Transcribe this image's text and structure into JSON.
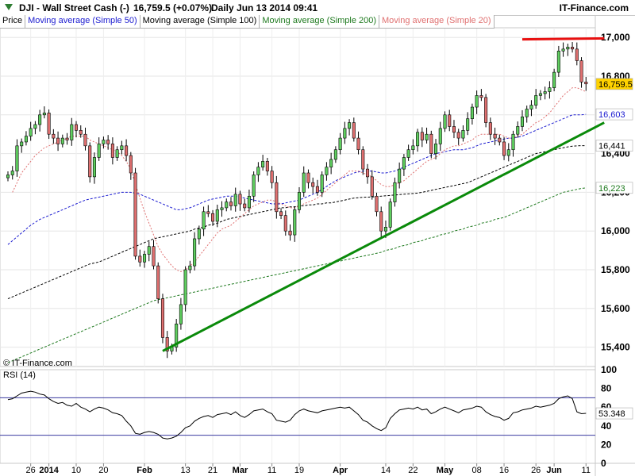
{
  "header": {
    "symbol": "DJI - Wall Street Cash (-)",
    "price_change": "16,759.5 (+0.07%)",
    "period": "Daily  Jun 13 2014 09:41",
    "brand": "IT-Finance.com"
  },
  "legend": [
    {
      "label": "Price",
      "color": "#000000"
    },
    {
      "label": "Moving average (Simple 50)",
      "color": "#1a1ad0"
    },
    {
      "label": "Moving average (Simple 100)",
      "color": "#000000"
    },
    {
      "label": "Moving average (Simple 200)",
      "color": "#1f7a1f"
    },
    {
      "label": "Moving average (Simple 20)",
      "color": "#e07070"
    }
  ],
  "copyright": "© IT-Finance.com",
  "rsi_label": "RSI (14)",
  "colors": {
    "up_candle": "#5fcf5f",
    "down_candle": "#e07070",
    "trendline_support": "#0a8a0a",
    "trendline_resistance": "#e81010",
    "sma20": "#e07070",
    "sma50": "#1a1ad0",
    "sma100": "#000000",
    "sma200": "#1f7a1f",
    "rsi_line": "#000000",
    "rsi_bands": "#3a3aa0"
  },
  "chart_data": [
    {
      "type": "candlestick",
      "title": "DJI - Wall Street Cash (-)",
      "ylim": [
        15300,
        17050
      ],
      "y_ticks": [
        15400,
        15600,
        15800,
        16000,
        16200,
        16400,
        16600,
        16800,
        17000
      ],
      "y_tick_labels": [
        "15,400",
        "15,600",
        "15,800",
        "16,000",
        "16,200",
        "16,400",
        "16,600",
        "16,800",
        "17,000"
      ],
      "x_ticks": [
        {
          "i": 5,
          "label": "26"
        },
        {
          "i": 9,
          "label": "2014"
        },
        {
          "i": 15,
          "label": "10"
        },
        {
          "i": 21,
          "label": "20"
        },
        {
          "i": 30,
          "label": "Feb"
        },
        {
          "i": 39,
          "label": "13"
        },
        {
          "i": 45,
          "label": "21"
        },
        {
          "i": 51,
          "label": "Mar"
        },
        {
          "i": 58,
          "label": "11"
        },
        {
          "i": 64,
          "label": "19"
        },
        {
          "i": 73,
          "label": "Apr"
        },
        {
          "i": 83,
          "label": "14"
        },
        {
          "i": 89,
          "label": "22"
        },
        {
          "i": 96,
          "label": "May"
        },
        {
          "i": 103,
          "label": "08"
        },
        {
          "i": 109,
          "label": "16"
        },
        {
          "i": 116,
          "label": "26"
        },
        {
          "i": 120,
          "label": "Jun"
        },
        {
          "i": 127,
          "label": "11"
        }
      ],
      "close": [
        16290,
        16310,
        16440,
        16460,
        16490,
        16530,
        16550,
        16600,
        16610,
        16500,
        16480,
        16450,
        16480,
        16470,
        16550,
        16520,
        16500,
        16440,
        16280,
        16380,
        16450,
        16470,
        16450,
        16380,
        16420,
        16440,
        16390,
        16300,
        15870,
        15840,
        15880,
        15920,
        15820,
        15650,
        15450,
        15380,
        15400,
        15520,
        15620,
        15800,
        15820,
        15960,
        16010,
        16100,
        16090,
        16050,
        16110,
        16120,
        16150,
        16130,
        16190,
        16140,
        16120,
        16180,
        16290,
        16330,
        16360,
        16310,
        16250,
        16100,
        16080,
        16000,
        15980,
        16110,
        16200,
        16300,
        16250,
        16230,
        16200,
        16290,
        16330,
        16370,
        16420,
        16480,
        16530,
        16560,
        16480,
        16420,
        16320,
        16280,
        16180,
        16100,
        16000,
        16020,
        16150,
        16250,
        16320,
        16380,
        16420,
        16440,
        16510,
        16470,
        16500,
        16400,
        16450,
        16530,
        16600,
        16540,
        16510,
        16480,
        16520,
        16580,
        16640,
        16700,
        16690,
        16560,
        16500,
        16480,
        16460,
        16390,
        16420,
        16500,
        16540,
        16590,
        16630,
        16650,
        16700,
        16710,
        16720,
        16740,
        16820,
        16930,
        16940,
        16950,
        16940,
        16880,
        16770,
        16760
      ],
      "sma20": [
        null,
        16200,
        16250,
        16300,
        16330,
        16360,
        16390,
        16410,
        16430,
        16440,
        16450,
        16460,
        16470,
        16480,
        16490,
        16490,
        16490,
        16490,
        16470,
        16460,
        16450,
        16440,
        16430,
        16420,
        16410,
        16390,
        16360,
        16320,
        16240,
        16170,
        16100,
        16040,
        15980,
        15920,
        15880,
        15850,
        15820,
        15800,
        15790,
        15800,
        15820,
        15840,
        15870,
        15900,
        15930,
        15960,
        15990,
        16010,
        16020,
        16030,
        16050,
        16070,
        16090,
        16110,
        16130,
        16140,
        16150,
        16160,
        16160,
        16150,
        16140,
        16130,
        16120,
        16120,
        16130,
        16140,
        16150,
        16160,
        16170,
        16190,
        16210,
        16230,
        16250,
        16270,
        16290,
        16310,
        16310,
        16310,
        16300,
        16290,
        16280,
        16260,
        16240,
        16230,
        16230,
        16240,
        16250,
        16260,
        16280,
        16300,
        16320,
        16340,
        16360,
        16370,
        16380,
        16400,
        16420,
        16430,
        16440,
        16440,
        16450,
        16460,
        16470,
        16490,
        16500,
        16500,
        16500,
        16500,
        16500,
        16490,
        16480,
        16480,
        16490,
        16500,
        16520,
        16540,
        16560,
        16570,
        16590,
        16610,
        16640,
        16670,
        16700,
        16720,
        16740,
        16740,
        16730,
        16720
      ],
      "sma50": [
        15930,
        15950,
        15970,
        15990,
        16010,
        16030,
        16045,
        16060,
        16070,
        16080,
        16090,
        16100,
        16110,
        16120,
        16130,
        16140,
        16150,
        16160,
        16165,
        16170,
        16175,
        16180,
        16185,
        16190,
        16195,
        16200,
        16200,
        16200,
        16195,
        16190,
        16180,
        16170,
        16160,
        16150,
        16140,
        16130,
        16120,
        16110,
        16110,
        16115,
        16120,
        16130,
        16140,
        16150,
        16160,
        16165,
        16170,
        16175,
        16180,
        16180,
        16180,
        16175,
        16170,
        16165,
        16160,
        16155,
        16150,
        16145,
        16140,
        16140,
        16140,
        16145,
        16150,
        16155,
        16160,
        16170,
        16180,
        16190,
        16200,
        16215,
        16230,
        16245,
        16260,
        16270,
        16280,
        16290,
        16300,
        16305,
        16310,
        16310,
        16310,
        16305,
        16300,
        16300,
        16305,
        16310,
        16320,
        16330,
        16340,
        16350,
        16360,
        16370,
        16380,
        16390,
        16400,
        16405,
        16410,
        16415,
        16420,
        16420,
        16420,
        16425,
        16430,
        16440,
        16450,
        16455,
        16460,
        16465,
        16470,
        16475,
        16480,
        16480,
        16485,
        16490,
        16500,
        16510,
        16520,
        16530,
        16540,
        16550,
        16560,
        16570,
        16580,
        16590,
        16600,
        16600,
        16600,
        16603
      ],
      "sma100": [
        15650,
        15660,
        15670,
        15680,
        15690,
        15700,
        15710,
        15720,
        15730,
        15740,
        15750,
        15760,
        15770,
        15780,
        15790,
        15800,
        15810,
        15820,
        15830,
        15835,
        15840,
        15850,
        15860,
        15870,
        15880,
        15890,
        15900,
        15910,
        15920,
        15930,
        15940,
        15950,
        15960,
        15965,
        15970,
        15975,
        15980,
        15985,
        15990,
        15995,
        16000,
        16010,
        16015,
        16020,
        16030,
        16035,
        16040,
        16050,
        16060,
        16065,
        16070,
        16075,
        16080,
        16085,
        16090,
        16095,
        16100,
        16105,
        16110,
        16115,
        16120,
        16120,
        16125,
        16125,
        16130,
        16130,
        16135,
        16135,
        16140,
        16140,
        16145,
        16145,
        16150,
        16155,
        16160,
        16165,
        16170,
        16172,
        16174,
        16175,
        16176,
        16178,
        16180,
        16182,
        16184,
        16186,
        16188,
        16190,
        16192,
        16194,
        16196,
        16200,
        16205,
        16210,
        16215,
        16220,
        16225,
        16230,
        16235,
        16240,
        16245,
        16250,
        16260,
        16270,
        16280,
        16290,
        16300,
        16310,
        16320,
        16330,
        16340,
        16350,
        16360,
        16370,
        16380,
        16390,
        16400,
        16405,
        16410,
        16415,
        16420,
        16425,
        16430,
        16435,
        16438,
        16440,
        16441,
        16441
      ],
      "sma200": [
        15320,
        15330,
        15340,
        15350,
        15360,
        15370,
        15380,
        15390,
        15400,
        15410,
        15420,
        15430,
        15440,
        15450,
        15460,
        15470,
        15480,
        15490,
        15500,
        15510,
        15520,
        15530,
        15540,
        15550,
        15560,
        15570,
        15580,
        15590,
        15600,
        15610,
        15620,
        15630,
        15640,
        15645,
        15650,
        15655,
        15660,
        15665,
        15670,
        15675,
        15680,
        15685,
        15690,
        15695,
        15700,
        15705,
        15710,
        15715,
        15720,
        15725,
        15730,
        15735,
        15740,
        15745,
        15750,
        15755,
        15760,
        15765,
        15770,
        15775,
        15780,
        15785,
        15790,
        15795,
        15800,
        15805,
        15810,
        15815,
        15820,
        15825,
        15830,
        15835,
        15840,
        15845,
        15850,
        15855,
        15860,
        15865,
        15870,
        15875,
        15880,
        15885,
        15890,
        15900,
        15905,
        15910,
        15920,
        15925,
        15930,
        15940,
        15945,
        15950,
        15960,
        15965,
        15970,
        15980,
        15985,
        15990,
        16000,
        16005,
        16010,
        16020,
        16025,
        16030,
        16040,
        16045,
        16050,
        16060,
        16065,
        16070,
        16080,
        16090,
        16100,
        16110,
        16120,
        16130,
        16140,
        16150,
        16160,
        16170,
        16180,
        16190,
        16200,
        16205,
        16210,
        16215,
        16220,
        16223
      ],
      "trendlines": [
        {
          "name": "support",
          "from": {
            "i": 34,
            "y": 15380
          },
          "to": {
            "i": 131,
            "y": 16560
          }
        },
        {
          "name": "resistance",
          "from": {
            "i": 113,
            "y": 16990
          },
          "to": {
            "i": 131,
            "y": 16995
          }
        }
      ],
      "last_value_labels": [
        {
          "value": 16759.5,
          "text": "16,759.5",
          "bg": "#ffd200",
          "fg": "#000000"
        },
        {
          "value": 16603,
          "text": "16,603",
          "bg": "#ffffff",
          "fg": "#1a1ad0"
        },
        {
          "value": 16441,
          "text": "16,441",
          "bg": "#ffffff",
          "fg": "#000000"
        },
        {
          "value": 16223,
          "text": "16,223",
          "bg": "#ffffff",
          "fg": "#1f7a1f"
        }
      ]
    },
    {
      "type": "line",
      "title": "RSI (14)",
      "ylim": [
        0,
        100
      ],
      "y_ticks": [
        0,
        20,
        40,
        60,
        80,
        100
      ],
      "y_tick_labels": [
        "0",
        "20",
        "40",
        "60",
        "80",
        "100"
      ],
      "bands": [
        30,
        70
      ],
      "last_value_label": "53.348",
      "values": [
        68,
        69,
        72,
        75,
        76,
        77,
        76,
        74,
        73,
        69,
        66,
        64,
        65,
        62,
        61,
        64,
        60,
        58,
        55,
        58,
        60,
        59,
        57,
        54,
        53,
        51,
        45,
        40,
        32,
        31,
        33,
        34,
        33,
        31,
        27,
        26,
        27,
        29,
        33,
        38,
        40,
        45,
        48,
        50,
        51,
        49,
        52,
        53,
        54,
        52,
        55,
        51,
        49,
        52,
        56,
        57,
        58,
        55,
        53,
        46,
        45,
        44,
        46,
        52,
        56,
        58,
        56,
        55,
        54,
        56,
        57,
        58,
        59,
        60,
        59,
        60,
        56,
        52,
        46,
        44,
        40,
        37,
        35,
        38,
        48,
        53,
        57,
        58,
        59,
        58,
        60,
        57,
        58,
        53,
        55,
        58,
        60,
        58,
        56,
        54,
        57,
        58,
        59,
        61,
        60,
        55,
        52,
        50,
        49,
        46,
        48,
        54,
        55,
        57,
        58,
        59,
        61,
        60,
        61,
        62,
        64,
        69,
        71,
        72,
        69,
        55,
        53,
        53.348
      ]
    }
  ]
}
